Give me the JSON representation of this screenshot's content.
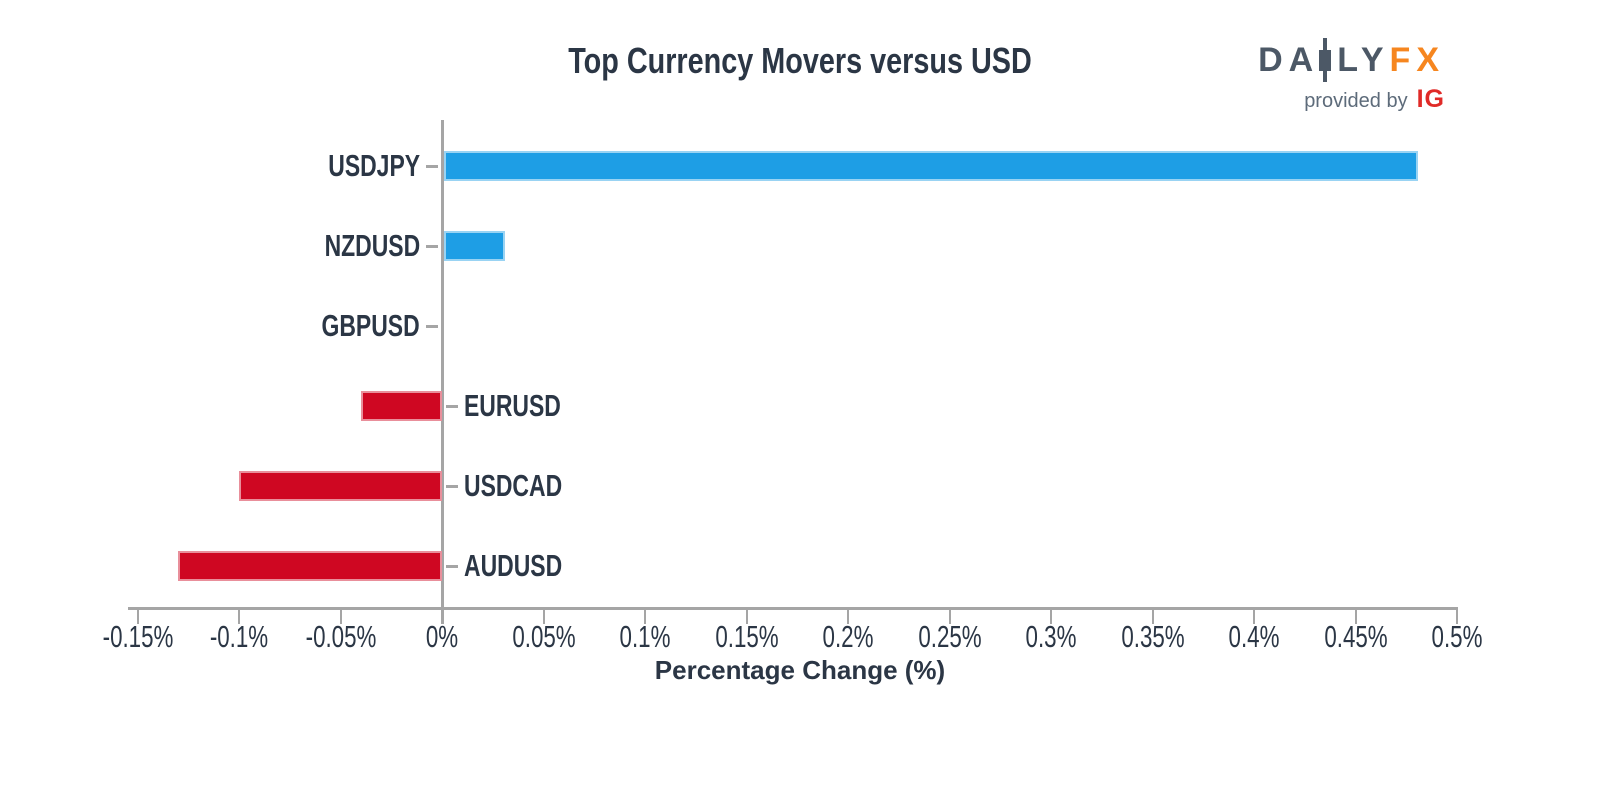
{
  "page": {
    "background": "#FFFFFF"
  },
  "logo": {
    "word_part1": "DA",
    "word_part2": "LY",
    "word_suffix": "FX",
    "tagline": "provided by",
    "provider": "IG",
    "slate_color": "#4C5866",
    "fx_color": "#F6861F",
    "tagline_color": "#5D6B7A",
    "provider_color": "#E02A27"
  },
  "chart_data": {
    "type": "bar",
    "orientation": "horizontal",
    "title": "Top Currency Movers versus USD",
    "xlabel": "Percentage Change (%)",
    "categories": [
      "USDJPY",
      "NZDUSD",
      "GBPUSD",
      "EURUSD",
      "USDCAD",
      "AUDUSD"
    ],
    "values": [
      0.48,
      0.03,
      0.0,
      -0.04,
      -0.1,
      -0.13
    ],
    "unit": "%",
    "xlim": [
      -0.155,
      0.5
    ],
    "x_ticks": [
      -0.15,
      -0.1,
      -0.05,
      0,
      0.05,
      0.1,
      0.15,
      0.2,
      0.25,
      0.3,
      0.35,
      0.4,
      0.45,
      0.5
    ],
    "x_tick_labels": [
      "-0.15%",
      "-0.1%",
      "-0.05%",
      "0%",
      "0.05%",
      "0.1%",
      "0.15%",
      "0.2%",
      "0.25%",
      "0.3%",
      "0.35%",
      "0.4%",
      "0.45%",
      "0.5%"
    ],
    "positive_color": "#1E9EE5",
    "negative_color": "#CF0722",
    "axis_color": "#A5A5A5",
    "text_color": "#2B3645",
    "grid": false,
    "legend": false,
    "label_side": "opposite-of-bar"
  }
}
